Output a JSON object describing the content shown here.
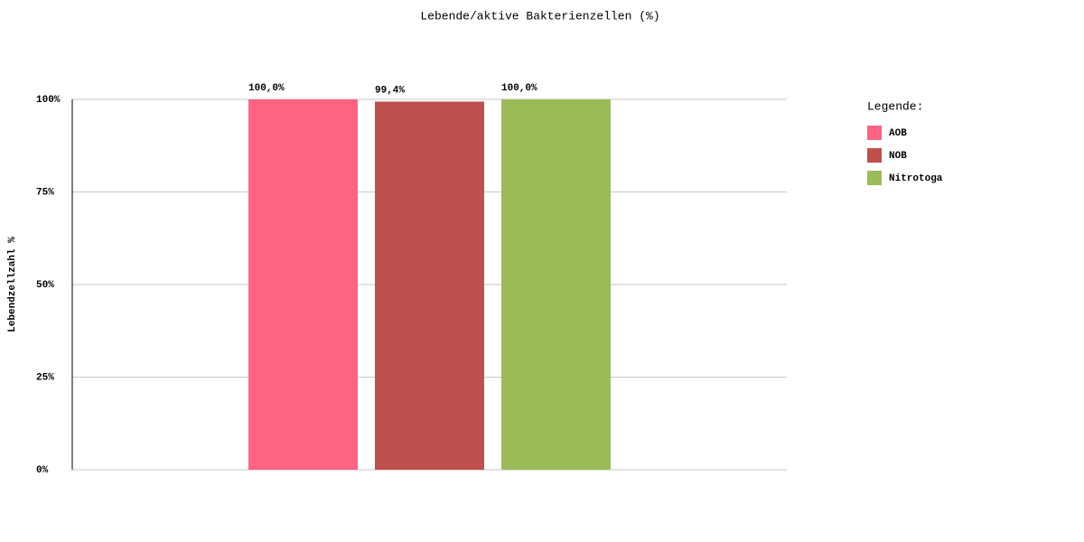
{
  "chart_data": {
    "type": "bar",
    "title": "Lebende/aktive Bakterienzellen (%)",
    "y_label": "Lebendzellzahl %",
    "legend_title": "Legende:",
    "legend_position": "right",
    "categories": [
      null
    ],
    "series": [
      {
        "name": "AOB",
        "color": "#ff6384",
        "values": [
          100
        ],
        "value_labels": [
          "100,0%"
        ]
      },
      {
        "name": "NOB",
        "color": "#c0504d",
        "values": [
          99.4
        ],
        "value_labels": [
          "99,4%"
        ]
      },
      {
        "name": "Nitrotoga",
        "color": "#9bbb59",
        "values": [
          100
        ],
        "value_labels": [
          "100,0%"
        ]
      }
    ],
    "ylim": [
      0,
      100
    ],
    "yticks": [
      {
        "value": 0,
        "label": "0%"
      },
      {
        "value": 25,
        "label": "25%"
      },
      {
        "value": 50,
        "label": "50%"
      },
      {
        "value": 75,
        "label": "75%"
      },
      {
        "value": 100,
        "label": "100%"
      }
    ],
    "grid": true
  }
}
